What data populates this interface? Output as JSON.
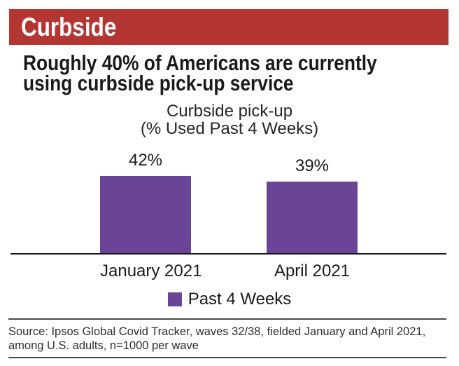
{
  "header": {
    "title": "Curbside",
    "bar_color": "#b43632"
  },
  "headline": {
    "line1": "Roughly 40% of Americans are currently",
    "line2": "using curbside pick-up service"
  },
  "chart_data": {
    "type": "bar",
    "title": "Curbside pick-up",
    "subtitle": "(% Used Past 4 Weeks)",
    "categories": [
      "January 2021",
      "April 2021"
    ],
    "values": [
      42,
      39
    ],
    "value_labels": [
      "42%",
      "39%"
    ],
    "ylim": [
      0,
      45
    ],
    "grid": false,
    "bar_color": "#6a4496",
    "legend": {
      "label": "Past 4 Weeks",
      "position": "bottom"
    }
  },
  "footer": {
    "source_lines": [
      "Source: Ipsos Global Covid Tracker, waves 32/38, fielded January and April 2021,",
      "among U.S. adults, n=1000 per wave"
    ]
  }
}
